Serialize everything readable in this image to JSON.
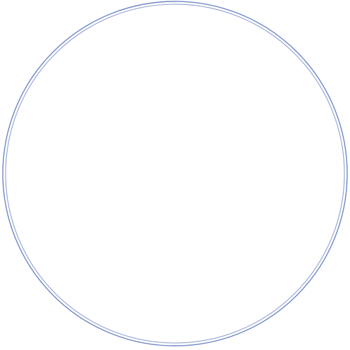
{
  "badge": {
    "icon": "signal-bars-icon",
    "ring_color": "#6f86c6",
    "icon_color": "#ffffff",
    "background": "#ffffff"
  }
}
